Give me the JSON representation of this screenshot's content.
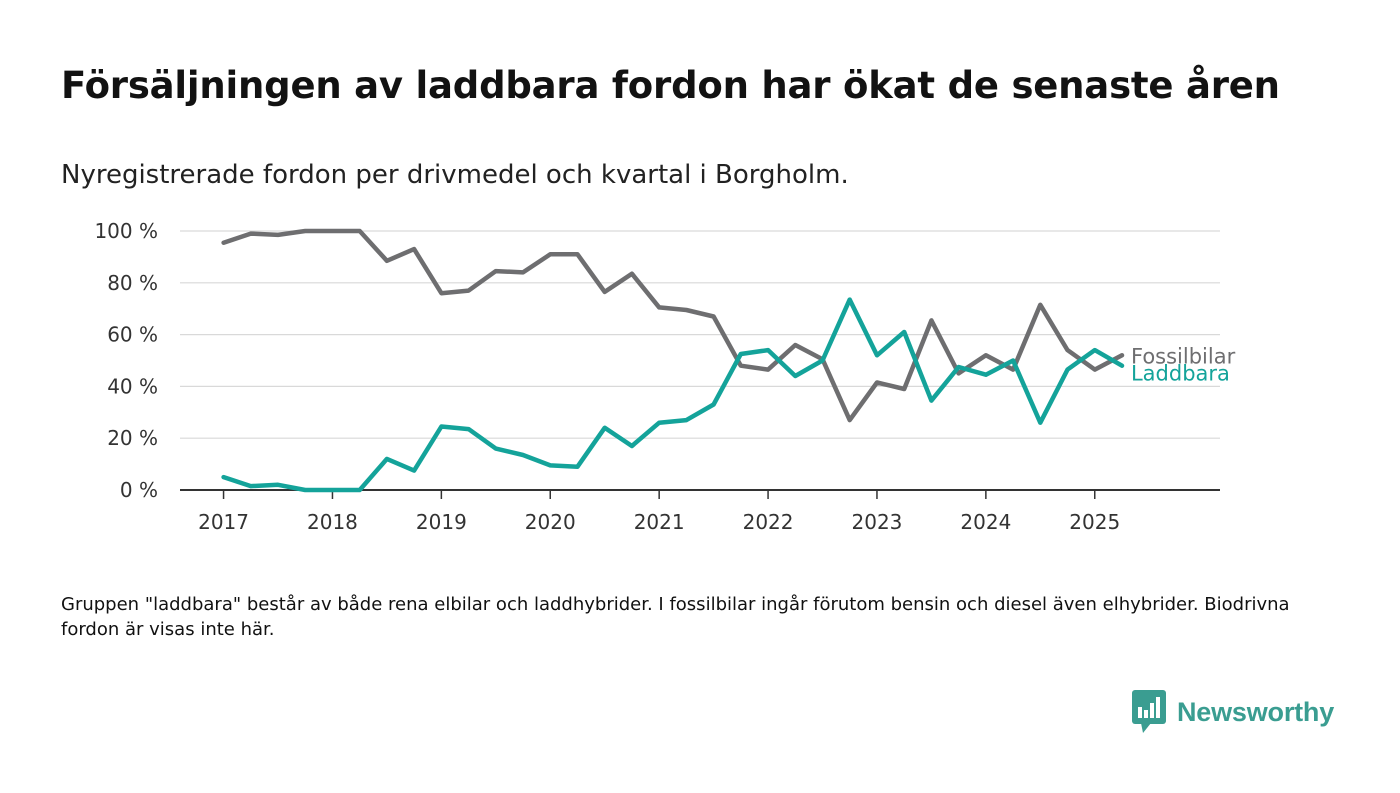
{
  "title": "Försäljningen av laddbara fordon har ökat de senaste åren",
  "subtitle": "Nyregistrerade fordon per drivmedel och kvartal i Borgholm.",
  "note": "Gruppen \"laddbara\" består av både rena elbilar och laddhybrider. I fossilbilar ingår förutom bensin och diesel även elhybrider. Biodrivna fordon är visas inte här.",
  "brand": {
    "name": "Newsworthy",
    "icon": "newsworthy-logo-icon",
    "color": "#3a9d91"
  },
  "chart_data": {
    "type": "line",
    "ylim": [
      0,
      100
    ],
    "grid": true,
    "y_ticks": [
      0,
      20,
      40,
      60,
      80,
      100
    ],
    "y_tick_labels": [
      "0 %",
      "20 %",
      "40 %",
      "60 %",
      "80 %",
      "100 %"
    ],
    "x_ticks": [
      2017,
      2018,
      2019,
      2020,
      2021,
      2022,
      2023,
      2024,
      2025
    ],
    "x_tick_labels": [
      "2017",
      "2018",
      "2019",
      "2020",
      "2021",
      "2022",
      "2023",
      "2024",
      "2025"
    ],
    "x": [
      2017.0,
      2017.25,
      2017.5,
      2017.75,
      2018.0,
      2018.25,
      2018.5,
      2018.75,
      2019.0,
      2019.25,
      2019.5,
      2019.75,
      2020.0,
      2020.25,
      2020.5,
      2020.75,
      2021.0,
      2021.25,
      2021.5,
      2021.75,
      2022.0,
      2022.25,
      2022.5,
      2022.75,
      2023.0,
      2023.25,
      2023.5,
      2023.75,
      2024.0,
      2024.25,
      2024.5,
      2024.75,
      2025.0,
      2025.25
    ],
    "series": [
      {
        "name": "Fossilbilar",
        "color": "#6e6e70",
        "values": [
          95.5,
          99,
          98.5,
          100,
          100,
          100,
          88.5,
          93,
          76,
          77,
          84.5,
          84,
          91,
          91,
          76.5,
          83.5,
          70.5,
          69.5,
          67,
          48,
          46.5,
          56,
          50.5,
          27,
          41.5,
          39,
          65.5,
          45,
          52,
          46.5,
          71.5,
          54,
          46.5,
          52
        ]
      },
      {
        "name": "Laddbara",
        "color": "#14a39a",
        "values": [
          5,
          1.5,
          2,
          0,
          0,
          0,
          12,
          7.5,
          24.5,
          23.5,
          16,
          13.5,
          9.5,
          9,
          24,
          17,
          26,
          27,
          33,
          52.5,
          54,
          44,
          50,
          73.5,
          52,
          61,
          34.5,
          47.5,
          44.5,
          50,
          26,
          46.5,
          54,
          48
        ]
      }
    ]
  }
}
